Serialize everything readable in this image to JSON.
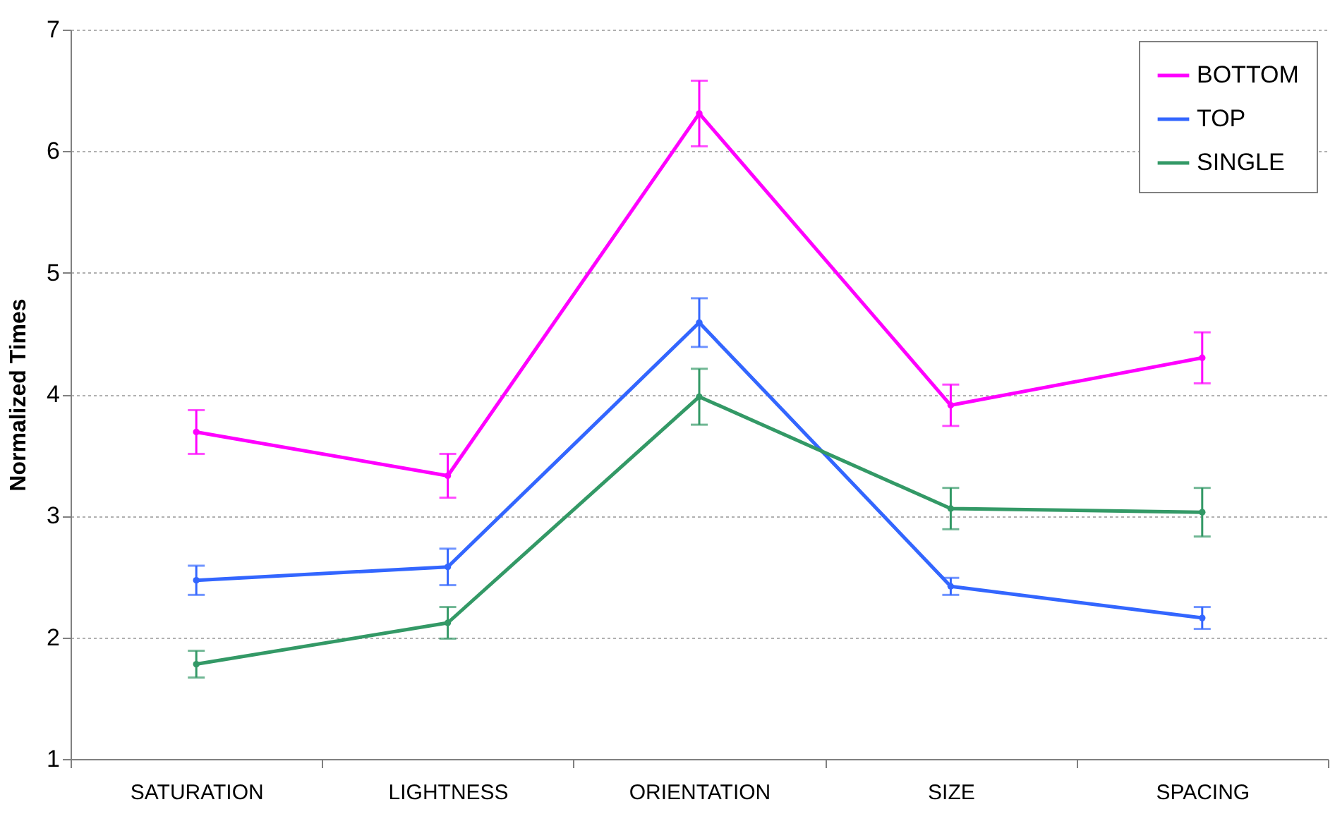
{
  "chart_data": {
    "type": "line",
    "ylabel": "Normalized Times",
    "categories": [
      "SATURATION",
      "LIGHTNESS",
      "ORIENTATION",
      "SIZE",
      "SPACING"
    ],
    "series": [
      {
        "name": "BOTTOM",
        "color": "#ff00ff",
        "values": [
          3.69,
          3.33,
          6.31,
          3.91,
          4.3
        ],
        "errors": [
          0.18,
          0.18,
          0.27,
          0.17,
          0.21
        ]
      },
      {
        "name": "TOP",
        "color": "#3366ff",
        "values": [
          2.47,
          2.58,
          4.59,
          2.42,
          2.16
        ],
        "errors": [
          0.12,
          0.15,
          0.2,
          0.07,
          0.09
        ]
      },
      {
        "name": "SINGLE",
        "color": "#339966",
        "values": [
          1.78,
          2.12,
          3.98,
          3.06,
          3.03
        ],
        "errors": [
          0.11,
          0.13,
          0.23,
          0.17,
          0.2
        ]
      }
    ],
    "ylim": [
      1,
      7
    ],
    "yticks": [
      1,
      2,
      3,
      4,
      5,
      6,
      7
    ],
    "grid": "y",
    "legend": "top right",
    "marker": "circle",
    "line_style": "solid"
  }
}
